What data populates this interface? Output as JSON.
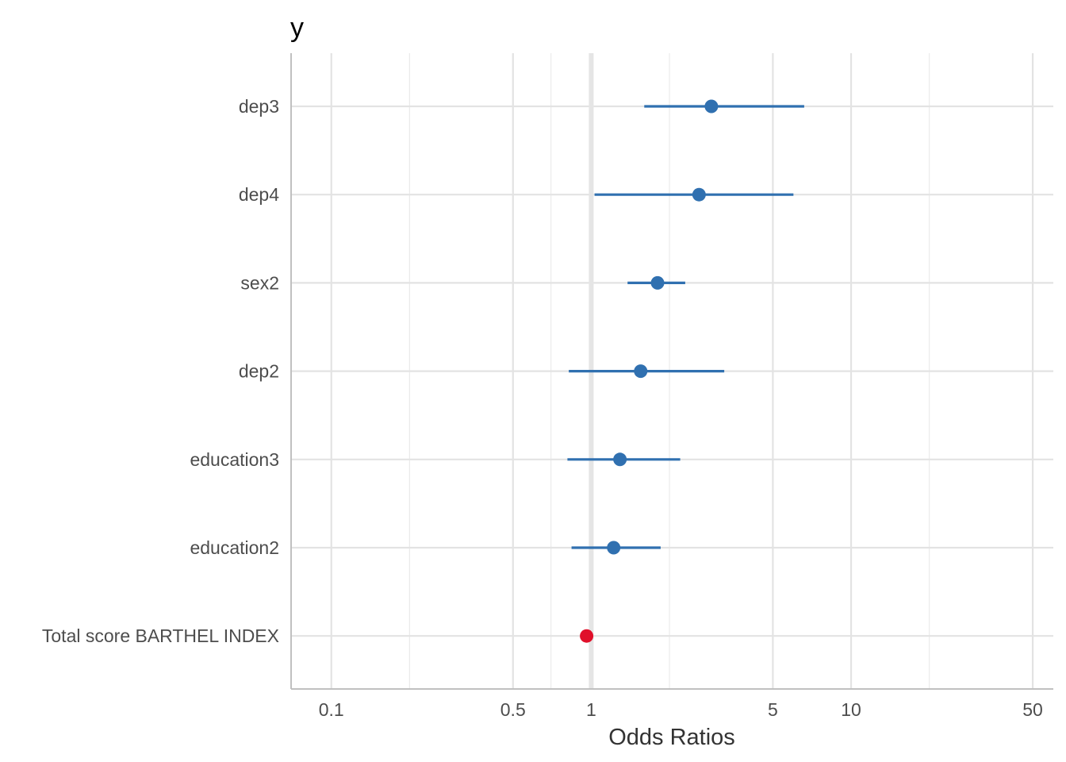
{
  "chart_data": {
    "type": "forest",
    "title": "y",
    "xlabel": "Odds Ratios",
    "ylabel": "",
    "x_scale": "log10",
    "xlim": [
      0.07,
      60
    ],
    "x_major_ticks": [
      0.1,
      0.5,
      1,
      5,
      10,
      50
    ],
    "x_tick_labels": [
      "0.1",
      "0.5",
      "1",
      "5",
      "10",
      "50"
    ],
    "x_minor_gridlines": [
      0.2,
      0.7,
      2,
      20
    ],
    "reference_line": 1,
    "grid": true,
    "colors": {
      "positive": "#3070b0",
      "negative": "#e0102a",
      "reference": "#e5e5e5"
    },
    "terms": [
      {
        "label": "dep3",
        "estimate": 2.9,
        "conf_low": 1.6,
        "conf_high": 6.6,
        "color": "positive"
      },
      {
        "label": "dep4",
        "estimate": 2.6,
        "conf_low": 1.03,
        "conf_high": 6.0,
        "color": "positive"
      },
      {
        "label": "sex2",
        "estimate": 1.8,
        "conf_low": 1.38,
        "conf_high": 2.3,
        "color": "positive"
      },
      {
        "label": "dep2",
        "estimate": 1.55,
        "conf_low": 0.82,
        "conf_high": 3.25,
        "color": "positive"
      },
      {
        "label": "education3",
        "estimate": 1.29,
        "conf_low": 0.81,
        "conf_high": 2.2,
        "color": "positive"
      },
      {
        "label": "education2",
        "estimate": 1.22,
        "conf_low": 0.84,
        "conf_high": 1.85,
        "color": "positive"
      },
      {
        "label": "Total score BARTHEL INDEX",
        "estimate": 0.96,
        "conf_low": 0.955,
        "conf_high": 0.965,
        "color": "negative"
      }
    ]
  }
}
